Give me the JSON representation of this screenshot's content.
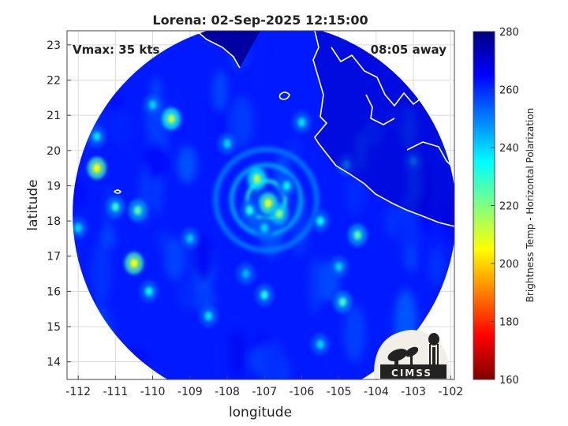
{
  "chart_data": {
    "type": "heatmap",
    "title": "Lorena: 02-Sep-2025 12:15:00",
    "xlabel": "longitude",
    "ylabel": "latitude",
    "xlim": [
      -112.3,
      -101.9
    ],
    "ylim": [
      13.5,
      23.4
    ],
    "x_ticks": [
      -112,
      -111,
      -110,
      -109,
      -108,
      -107,
      -106,
      -105,
      -104,
      -103,
      -102
    ],
    "y_ticks": [
      14,
      15,
      16,
      17,
      18,
      19,
      20,
      21,
      22,
      23
    ],
    "grid": true,
    "annotations": {
      "vmax": "Vmax: 35 kts",
      "time_away": "08:05 away"
    },
    "colorbar": {
      "label": "Brightness Temp - Horizontal Polarization",
      "range": [
        160,
        280
      ],
      "ticks": [
        160,
        180,
        200,
        220,
        240,
        260,
        280
      ],
      "colormap": "jet"
    },
    "storm_center": {
      "lon": -106.95,
      "lat": 18.6
    },
    "swath": {
      "center_lon": -107.0,
      "center_lat": 18.2,
      "radius_deg": 5.15
    },
    "background_tb": 262,
    "features": [
      {
        "lon": -106.9,
        "lat": 18.5,
        "tb": 208
      },
      {
        "lon": -107.2,
        "lat": 19.2,
        "tb": 214
      },
      {
        "lon": -106.6,
        "lat": 18.2,
        "tb": 220
      },
      {
        "lon": -107.4,
        "lat": 18.3,
        "tb": 232
      },
      {
        "lon": -106.4,
        "lat": 19.0,
        "tb": 236
      },
      {
        "lon": -107.0,
        "lat": 17.8,
        "tb": 240
      },
      {
        "lon": -111.5,
        "lat": 19.5,
        "tb": 205
      },
      {
        "lon": -110.5,
        "lat": 16.8,
        "tb": 205
      },
      {
        "lon": -109.5,
        "lat": 20.9,
        "tb": 212
      },
      {
        "lon": -110.4,
        "lat": 18.3,
        "tb": 225
      },
      {
        "lon": -111.0,
        "lat": 18.4,
        "tb": 230
      },
      {
        "lon": -110.1,
        "lat": 16.0,
        "tb": 235
      },
      {
        "lon": -104.5,
        "lat": 17.6,
        "tb": 225
      },
      {
        "lon": -104.9,
        "lat": 15.7,
        "tb": 228
      },
      {
        "lon": -107.0,
        "lat": 15.9,
        "tb": 232
      },
      {
        "lon": -106.0,
        "lat": 20.8,
        "tb": 238
      },
      {
        "lon": -108.0,
        "lat": 20.2,
        "tb": 240
      },
      {
        "lon": -110.0,
        "lat": 21.3,
        "tb": 240
      },
      {
        "lon": -108.5,
        "lat": 15.3,
        "tb": 238
      },
      {
        "lon": -105.5,
        "lat": 14.5,
        "tb": 240
      },
      {
        "lon": -112.0,
        "lat": 17.8,
        "tb": 240
      },
      {
        "lon": -105.5,
        "lat": 18.0,
        "tb": 235
      },
      {
        "lon": -109.0,
        "lat": 17.5,
        "tb": 242
      },
      {
        "lon": -103.0,
        "lat": 19.7,
        "tb": 242
      },
      {
        "lon": -104.8,
        "lat": 19.6,
        "tb": 240
      },
      {
        "lon": -111.5,
        "lat": 20.4,
        "tb": 238
      },
      {
        "lon": -107.5,
        "lat": 16.5,
        "tb": 244
      },
      {
        "lon": -105.0,
        "lat": 16.7,
        "tb": 240
      }
    ]
  },
  "logo": {
    "text": "CIMSS"
  }
}
